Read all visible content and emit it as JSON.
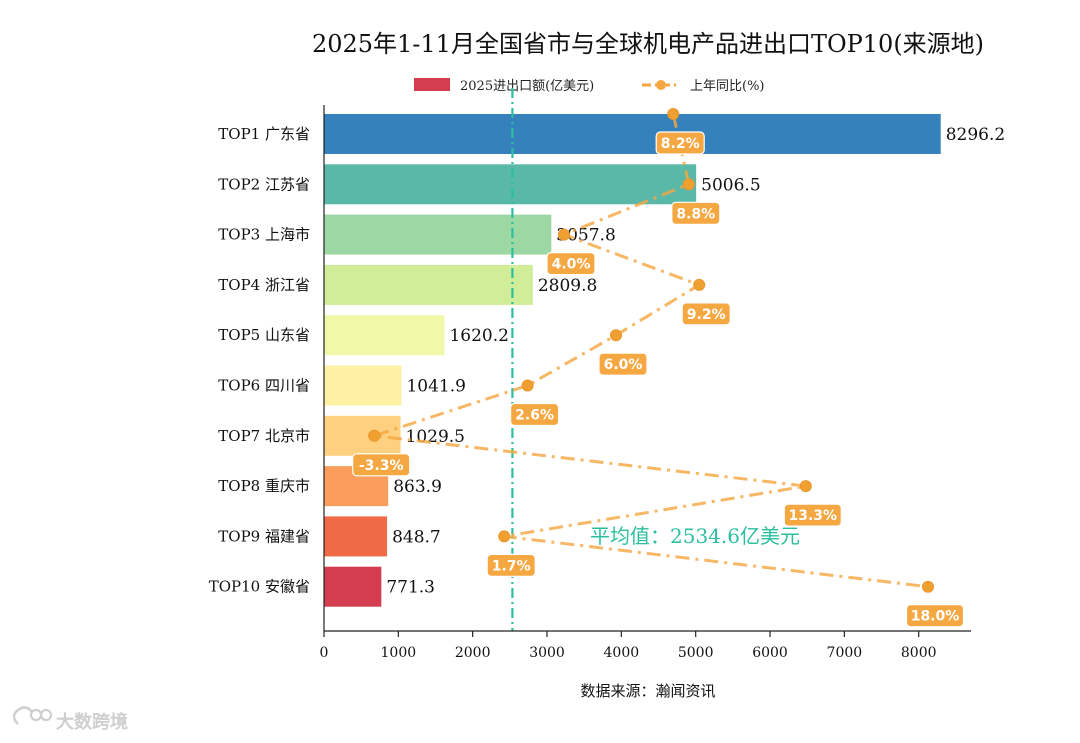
{
  "chart_data": {
    "type": "bar",
    "orientation": "horizontal",
    "title": "2025年1-11月全国省市与全球机电产品进出口TOP10(来源地)",
    "xlabel": "数据来源：瀚闻资讯",
    "xlim": [
      0,
      8300
    ],
    "xticks": [
      0,
      1000,
      2000,
      3000,
      4000,
      5000,
      6000,
      7000,
      8000
    ],
    "categories": [
      "TOP1 广东省",
      "TOP2 江苏省",
      "TOP3 上海市",
      "TOP4 浙江省",
      "TOP5 山东省",
      "TOP6 四川省",
      "TOP7 北京市",
      "TOP8 重庆市",
      "TOP9 福建省",
      "TOP10 安徽省"
    ],
    "series": [
      {
        "name": "2025进出口额(亿美元)",
        "type": "bar",
        "values": [
          8296.2,
          5006.5,
          3057.8,
          2809.8,
          1620.2,
          1041.9,
          1029.5,
          863.9,
          848.7,
          771.3
        ],
        "value_labels": [
          "8296.2",
          "5006.5",
          "3057.8",
          "2809.8",
          "1620.2",
          "1041.9",
          "1029.5",
          "863.9",
          "848.7",
          "771.3"
        ],
        "colors": [
          "#3581bb",
          "#5ab8a8",
          "#9dd8a4",
          "#d2ed9a",
          "#f1f9a8",
          "#fef1a4",
          "#fed07f",
          "#fb9e5d",
          "#ef6a47",
          "#d43d50"
        ]
      },
      {
        "name": "上年同比(%)",
        "type": "line",
        "style": "dash-dot",
        "color": "#f5a742",
        "values": [
          8.2,
          8.8,
          4.0,
          9.2,
          6.0,
          2.6,
          -3.3,
          13.3,
          1.7,
          18.0
        ],
        "value_labels": [
          "8.2%",
          "8.8%",
          "4.0%",
          "9.2%",
          "6.0%",
          "2.6%",
          "-3.3%",
          "13.3%",
          "1.7%",
          "18.0%"
        ]
      }
    ],
    "average": {
      "value": 2534.6,
      "label": "平均值：2534.6亿美元",
      "color": "#2bbf9f"
    },
    "legend": {
      "position": "top-center",
      "bar_label": "2025进出口额(亿美元)",
      "line_label": "上年同比(%)"
    }
  },
  "watermark": {
    "text": "大数跨境"
  }
}
